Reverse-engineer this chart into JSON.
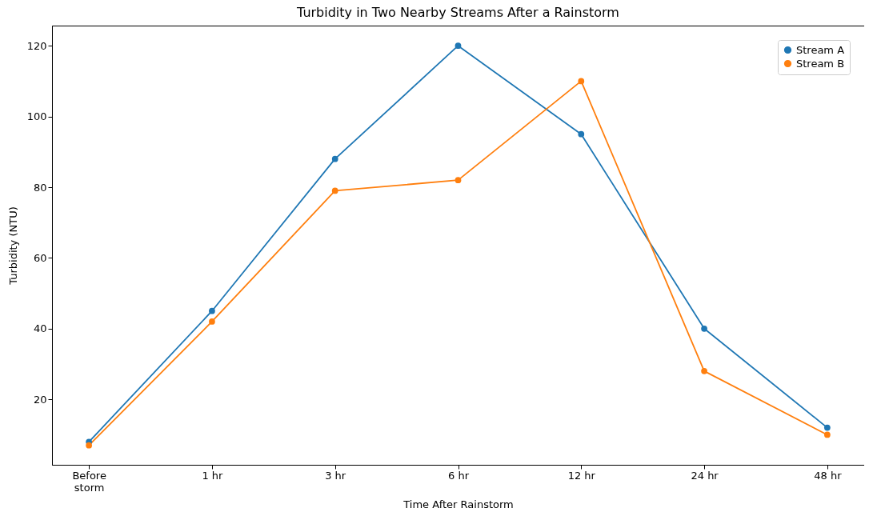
{
  "chart_data": {
    "type": "line",
    "title": "Turbidity in Two Nearby Streams After a Rainstorm",
    "xlabel": "Time After Rainstorm",
    "ylabel": "Turbidity (NTU)",
    "categories": [
      "Before\nstorm",
      "1 hr",
      "3 hr",
      "6 hr",
      "12 hr",
      "24 hr",
      "48 hr"
    ],
    "series": [
      {
        "name": "Stream A",
        "color": "#1f77b4",
        "values": [
          8,
          45,
          88,
          120,
          95,
          40,
          12
        ]
      },
      {
        "name": "Stream B",
        "color": "#ff7f0e",
        "values": [
          7,
          42,
          79,
          82,
          110,
          28,
          10
        ]
      }
    ],
    "ylim": [
      1.5,
      125.7
    ],
    "yticks": [
      20,
      40,
      60,
      80,
      100,
      120
    ],
    "grid": false,
    "legend": "top right",
    "marker": "circle",
    "line_style": "solid"
  }
}
